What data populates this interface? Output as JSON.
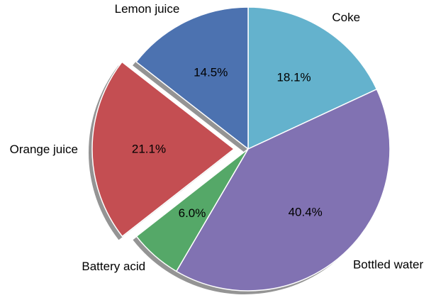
{
  "chart_data": {
    "type": "pie",
    "title": "",
    "startangle": 90,
    "counterclock": false,
    "labels": [
      "Coke",
      "Bottled water",
      "Battery acid",
      "Orange juice",
      "Lemon juice"
    ],
    "values": [
      18.1,
      40.4,
      6.0,
      21.1,
      14.5
    ],
    "percent_labels": [
      "18.1%",
      "40.4%",
      "6.0%",
      "21.1%",
      "14.5%"
    ],
    "colors": [
      "#64b2cd",
      "#8172b2",
      "#55a868",
      "#c44e52",
      "#4c72b0"
    ],
    "explode": [
      0,
      0,
      0,
      0.1,
      0
    ],
    "shadow": true
  }
}
